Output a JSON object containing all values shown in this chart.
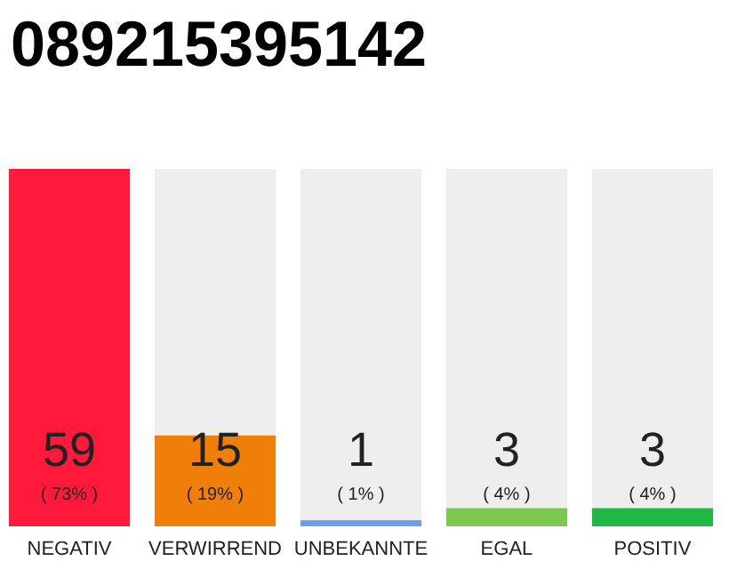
{
  "chart_data": {
    "type": "bar",
    "title": "089215395142",
    "categories": [
      "NEGATIV",
      "VERWIRREND",
      "UNBEKANNTE",
      "EGAL",
      "POSITIV"
    ],
    "values": [
      59,
      15,
      1,
      3,
      3
    ],
    "colors": [
      "#ff1a3c",
      "#f07f0a",
      "#6e9ce8",
      "#7cc850",
      "#20b845"
    ],
    "data_labels": true,
    "annotations": [
      "( 73% )",
      "( 19% )",
      "( 1% )",
      "( 4% )",
      "( 4% )"
    ]
  }
}
